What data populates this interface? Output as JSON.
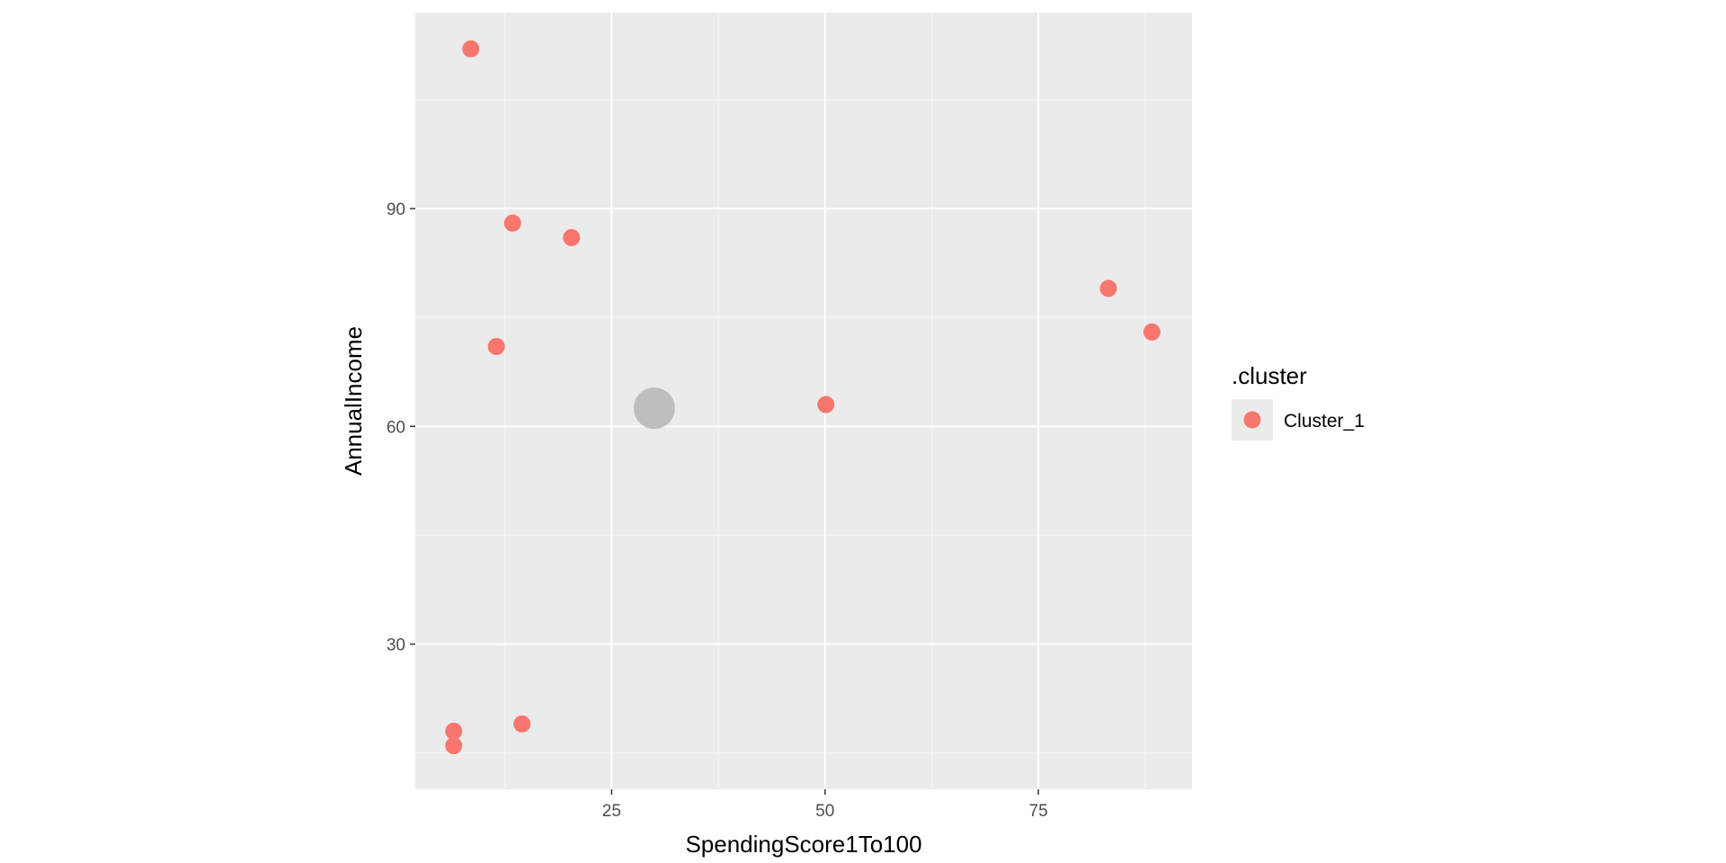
{
  "chart_data": {
    "type": "scatter",
    "xlabel": "SpendingScore1To100",
    "ylabel": "AnnualIncome",
    "xlim": [
      2,
      93
    ],
    "ylim": [
      10,
      117
    ],
    "x_ticks": [
      25,
      50,
      75
    ],
    "y_ticks": [
      30,
      60,
      90
    ],
    "grid": true,
    "legend": {
      "title": ".cluster",
      "position": "right",
      "entries": [
        {
          "label": "Cluster_1",
          "color": "#F8766D"
        }
      ]
    },
    "series": [
      {
        "name": "Cluster_1",
        "color": "#F8766D",
        "points": [
          {
            "x": 8.5,
            "y": 112
          },
          {
            "x": 13.4,
            "y": 88
          },
          {
            "x": 20.3,
            "y": 86
          },
          {
            "x": 11.5,
            "y": 71
          },
          {
            "x": 50.1,
            "y": 63
          },
          {
            "x": 83.2,
            "y": 79
          },
          {
            "x": 88.3,
            "y": 73
          },
          {
            "x": 6.5,
            "y": 18
          },
          {
            "x": 6.5,
            "y": 16
          },
          {
            "x": 14.5,
            "y": 19
          }
        ]
      }
    ],
    "centroid": {
      "x": 30,
      "y": 62.5,
      "color": "#BEBEBE"
    }
  },
  "colors": {
    "panel_background": "#EBEBEB",
    "grid_major": "#FFFFFF",
    "grid_minor": "#F5F5F5",
    "point": "#F8766D",
    "centroid": "#BEBEBE"
  }
}
